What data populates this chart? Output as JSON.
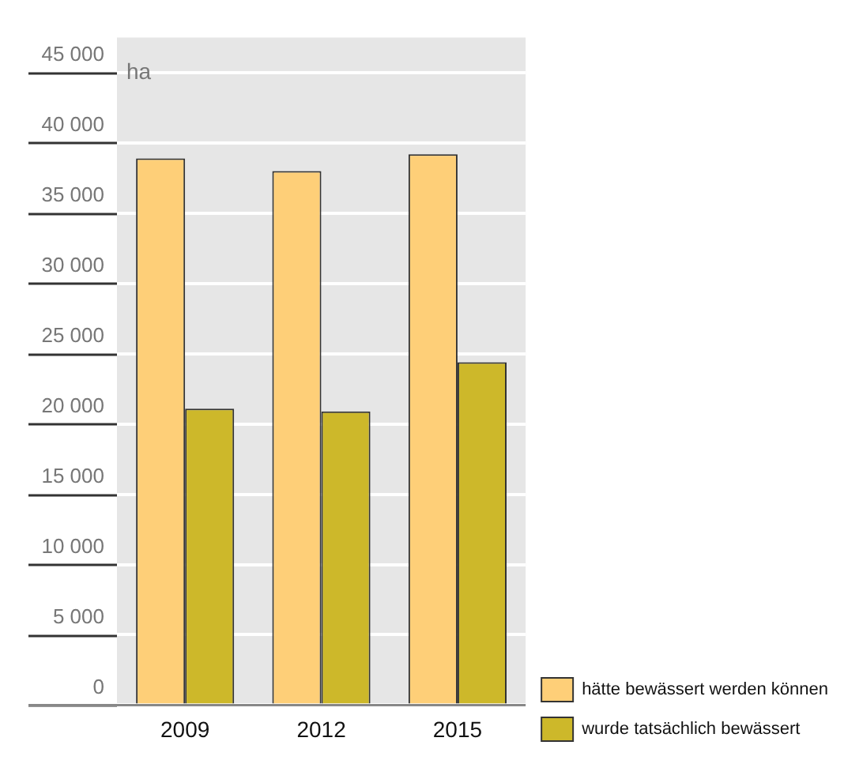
{
  "chart_data": {
    "type": "bar",
    "ylabel": "ha",
    "categories": [
      "2009",
      "2012",
      "2015"
    ],
    "series": [
      {
        "name": "hätte bewässert werden können",
        "color": "#fecf78",
        "values": [
          38900,
          38000,
          39200
        ]
      },
      {
        "name": "wurde tatsächlich bewässert",
        "color": "#cdb82a",
        "values": [
          21100,
          20900,
          24400
        ]
      }
    ],
    "ylim": [
      0,
      47500
    ],
    "yticks": [
      {
        "value": 0,
        "label": "0"
      },
      {
        "value": 5000,
        "label": "5 000"
      },
      {
        "value": 10000,
        "label": "10 000"
      },
      {
        "value": 15000,
        "label": "15 000"
      },
      {
        "value": 20000,
        "label": "20 000"
      },
      {
        "value": 25000,
        "label": "25 000"
      },
      {
        "value": 30000,
        "label": "30 000"
      },
      {
        "value": 35000,
        "label": "35 000"
      },
      {
        "value": 40000,
        "label": "40 000"
      },
      {
        "value": 45000,
        "label": "45 000"
      }
    ],
    "grid": "y",
    "legend": "bottom right"
  }
}
